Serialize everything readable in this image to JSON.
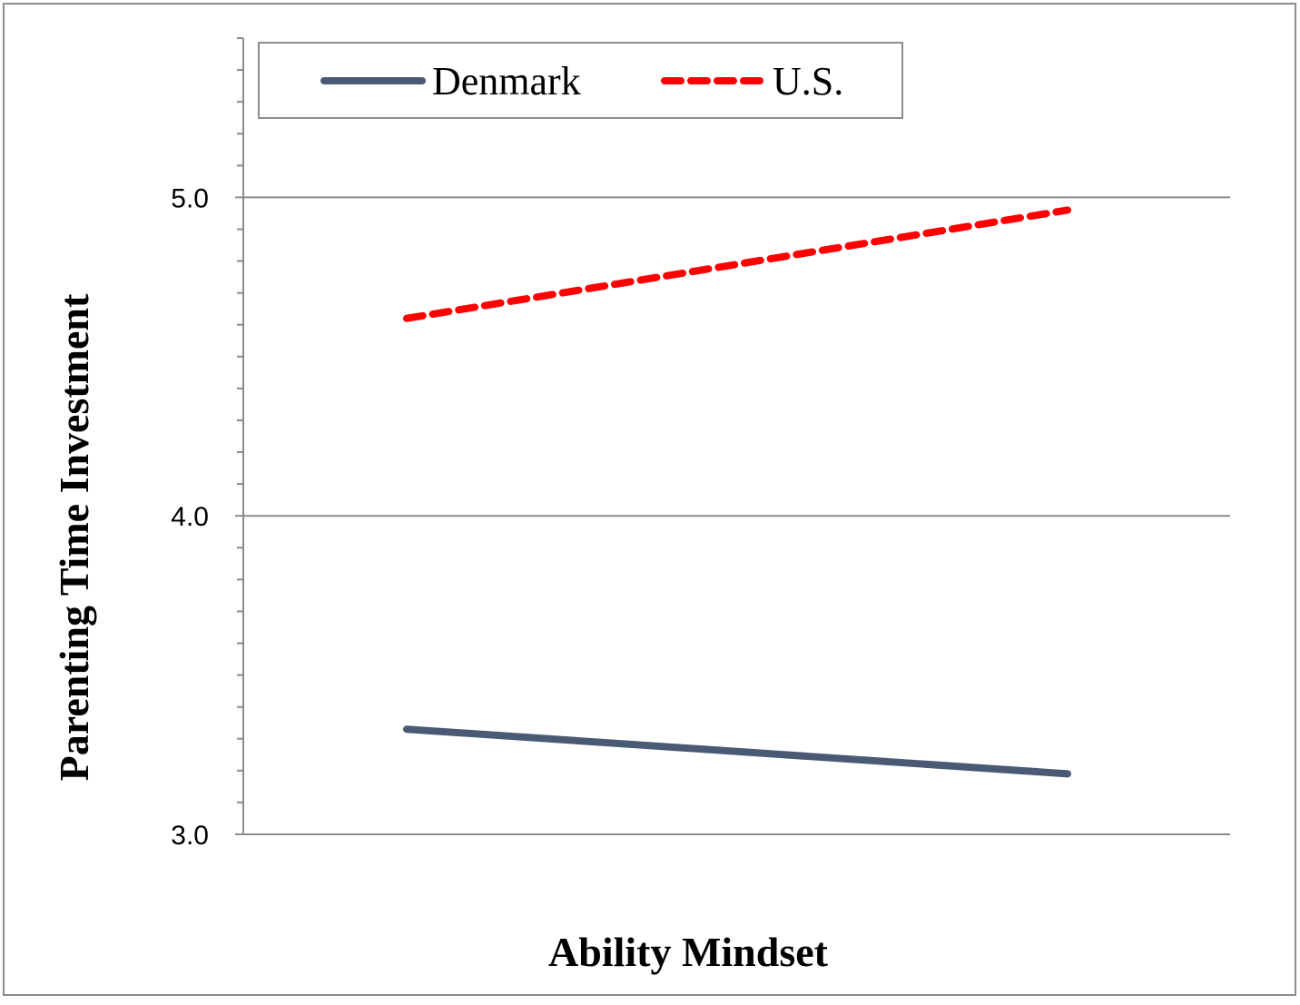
{
  "chart_data": {
    "type": "line",
    "title": "",
    "xlabel": "Ability Mindset",
    "ylabel": "Parenting Time Investment",
    "ylim": [
      3.0,
      5.5
    ],
    "y_ticks": [
      "3.0",
      "4.0",
      "5.0"
    ],
    "y_tick_values": [
      3.0,
      4.0,
      5.0
    ],
    "x": [
      0,
      1
    ],
    "grid": "horizontal at major ticks",
    "legend_position": "top",
    "series": [
      {
        "name": "Denmark",
        "values": [
          3.33,
          3.19
        ],
        "color": "#4a5a74",
        "dash": "solid"
      },
      {
        "name": "U.S.",
        "values": [
          4.62,
          4.96
        ],
        "color": "#ff0000",
        "dash": "dashed"
      }
    ]
  }
}
